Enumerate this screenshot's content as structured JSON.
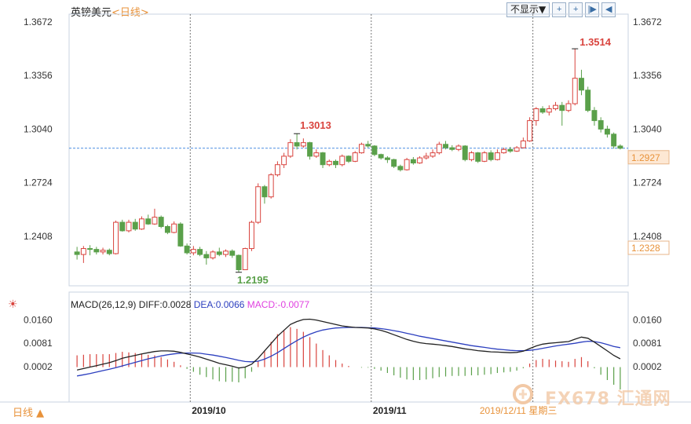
{
  "header": {
    "symbol": "英镑美元",
    "timeframe": "<日线>",
    "dropdown_label": "不显示▼",
    "buttons": [
      "+",
      "+",
      "|▶",
      "◀"
    ]
  },
  "colors": {
    "up": "#d9443e",
    "down": "#5aa04a",
    "diff": "#222222",
    "dea": "#2c3fbf",
    "macd_label": "#e040e0",
    "current_price_bg": "#fde8d4",
    "current_price_text": "#e8923a",
    "crosshair": "#4a8de0"
  },
  "chart_data": {
    "type": "candlestick",
    "price_axis": {
      "ticks": [
        "1.3672",
        "1.3356",
        "1.3040",
        "1.2724",
        "1.2408"
      ],
      "range": [
        1.218,
        1.3672
      ]
    },
    "x_ticks": [
      "2019/10",
      "2019/11"
    ],
    "cursor_date": "2019/12/11 星期三",
    "current_price": "1.2927",
    "second_price_label": "1.2328",
    "annotations": {
      "low": "1.2195",
      "mid_high": "1.3013",
      "high": "1.3514"
    },
    "candles": [
      [
        1.2315,
        1.23,
        1.2345,
        1.227
      ],
      [
        1.23,
        1.2335,
        1.235,
        1.225
      ],
      [
        1.2335,
        1.233,
        1.2355,
        1.2295
      ],
      [
        1.233,
        1.2315,
        1.2345,
        1.23
      ],
      [
        1.2315,
        1.2325,
        1.234,
        1.23
      ],
      [
        1.2325,
        1.2305,
        1.2335,
        1.2295
      ],
      [
        1.2305,
        1.249,
        1.25,
        1.23
      ],
      [
        1.249,
        1.244,
        1.2505,
        1.2435
      ],
      [
        1.244,
        1.249,
        1.2505,
        1.243
      ],
      [
        1.249,
        1.245,
        1.251,
        1.244
      ],
      [
        1.245,
        1.251,
        1.2525,
        1.2445
      ],
      [
        1.251,
        1.248,
        1.2535,
        1.2475
      ],
      [
        1.248,
        1.252,
        1.257,
        1.2475
      ],
      [
        1.252,
        1.2465,
        1.253,
        1.2455
      ],
      [
        1.2465,
        1.243,
        1.2475,
        1.242
      ],
      [
        1.243,
        1.248,
        1.2495,
        1.2425
      ],
      [
        1.248,
        1.235,
        1.249,
        1.2345
      ],
      [
        1.235,
        1.231,
        1.2365,
        1.23
      ],
      [
        1.231,
        1.233,
        1.235,
        1.2295
      ],
      [
        1.233,
        1.23,
        1.2345,
        1.229
      ],
      [
        1.23,
        1.228,
        1.232,
        1.224
      ],
      [
        1.228,
        1.2315,
        1.2325,
        1.227
      ],
      [
        1.2315,
        1.23,
        1.234,
        1.229
      ],
      [
        1.23,
        1.232,
        1.233,
        1.2285
      ],
      [
        1.232,
        1.2295,
        1.233,
        1.228
      ],
      [
        1.2295,
        1.221,
        1.23,
        1.2195
      ],
      [
        1.221,
        1.2335,
        1.234,
        1.221
      ],
      [
        1.2335,
        1.249,
        1.25,
        1.232
      ],
      [
        1.249,
        1.27,
        1.272,
        1.248
      ],
      [
        1.27,
        1.264,
        1.271,
        1.26
      ],
      [
        1.264,
        1.277,
        1.278,
        1.263
      ],
      [
        1.277,
        1.283,
        1.285,
        1.276
      ],
      [
        1.283,
        1.288,
        1.29,
        1.281
      ],
      [
        1.288,
        1.296,
        1.298,
        1.287
      ],
      [
        1.296,
        1.294,
        1.3013,
        1.292
      ],
      [
        1.294,
        1.296,
        1.2985,
        1.293
      ],
      [
        1.296,
        1.288,
        1.2965,
        1.286
      ],
      [
        1.288,
        1.29,
        1.292,
        1.287
      ],
      [
        1.29,
        1.283,
        1.2905,
        1.281
      ],
      [
        1.283,
        1.285,
        1.286,
        1.282
      ],
      [
        1.285,
        1.283,
        1.286,
        1.281
      ],
      [
        1.283,
        1.288,
        1.289,
        1.282
      ],
      [
        1.288,
        1.285,
        1.2885,
        1.284
      ],
      [
        1.285,
        1.29,
        1.291,
        1.2845
      ],
      [
        1.29,
        1.295,
        1.296,
        1.2895
      ],
      [
        1.295,
        1.294,
        1.297,
        1.293
      ],
      [
        1.294,
        1.289,
        1.2945,
        1.288
      ],
      [
        1.289,
        1.287,
        1.2895,
        1.286
      ],
      [
        1.287,
        1.286,
        1.288,
        1.284
      ],
      [
        1.286,
        1.282,
        1.2865,
        1.281
      ],
      [
        1.282,
        1.28,
        1.283,
        1.279
      ],
      [
        1.28,
        1.286,
        1.287,
        1.2795
      ],
      [
        1.286,
        1.284,
        1.2875,
        1.283
      ],
      [
        1.284,
        1.287,
        1.288,
        1.2835
      ],
      [
        1.287,
        1.288,
        1.29,
        1.286
      ],
      [
        1.288,
        1.29,
        1.292,
        1.287
      ],
      [
        1.29,
        1.295,
        1.2965,
        1.289
      ],
      [
        1.295,
        1.293,
        1.297,
        1.292
      ],
      [
        1.293,
        1.292,
        1.2945,
        1.291
      ],
      [
        1.292,
        1.294,
        1.295,
        1.291
      ],
      [
        1.294,
        1.286,
        1.2945,
        1.285
      ],
      [
        1.286,
        1.29,
        1.291,
        1.285
      ],
      [
        1.29,
        1.285,
        1.2905,
        1.284
      ],
      [
        1.285,
        1.29,
        1.291,
        1.2845
      ],
      [
        1.29,
        1.286,
        1.2915,
        1.285
      ],
      [
        1.286,
        1.29,
        1.292,
        1.2855
      ],
      [
        1.29,
        1.292,
        1.293,
        1.2895
      ],
      [
        1.292,
        1.291,
        1.2935,
        1.29
      ],
      [
        1.291,
        1.293,
        1.294,
        1.2905
      ],
      [
        1.293,
        1.297,
        1.299,
        1.2925
      ],
      [
        1.297,
        1.309,
        1.311,
        1.2965
      ],
      [
        1.309,
        1.316,
        1.317,
        1.306
      ],
      [
        1.316,
        1.314,
        1.3175,
        1.313
      ],
      [
        1.314,
        1.316,
        1.318,
        1.312
      ],
      [
        1.316,
        1.318,
        1.32,
        1.315
      ],
      [
        1.318,
        1.315,
        1.32,
        1.306
      ],
      [
        1.315,
        1.319,
        1.321,
        1.314
      ],
      [
        1.319,
        1.334,
        1.3514,
        1.318
      ],
      [
        1.334,
        1.327,
        1.339,
        1.324
      ],
      [
        1.327,
        1.315,
        1.329,
        1.314
      ],
      [
        1.315,
        1.309,
        1.317,
        1.306
      ],
      [
        1.309,
        1.304,
        1.311,
        1.302
      ],
      [
        1.304,
        1.301,
        1.306,
        1.299
      ],
      [
        1.301,
        1.294,
        1.302,
        1.2925
      ],
      [
        1.294,
        1.2927,
        1.295,
        1.292
      ]
    ],
    "macd": {
      "label": "MACD(26,12,9)",
      "diff_label": "DIFF:0.0028",
      "dea_label": "DEA:0.0066",
      "macd_label": "MACD:-0.0077",
      "ticks": [
        "0.0160",
        "0.0081",
        "0.0002"
      ],
      "range": [
        -0.006,
        0.0175
      ],
      "diff": [
        -0.001,
        -0.0005,
        0.0,
        0.0005,
        0.001,
        0.0015,
        0.0022,
        0.003,
        0.0035,
        0.004,
        0.0045,
        0.0049,
        0.0053,
        0.0055,
        0.0055,
        0.0054,
        0.005,
        0.0045,
        0.004,
        0.0034,
        0.0027,
        0.002,
        0.0013,
        0.0008,
        0.0003,
        -0.0003,
        0.0,
        0.001,
        0.003,
        0.0055,
        0.008,
        0.0105,
        0.0125,
        0.0145,
        0.0155,
        0.0162,
        0.0163,
        0.016,
        0.0155,
        0.015,
        0.0145,
        0.014,
        0.0137,
        0.0135,
        0.0134,
        0.0133,
        0.013,
        0.0125,
        0.0118,
        0.011,
        0.0102,
        0.0094,
        0.0088,
        0.0083,
        0.008,
        0.0078,
        0.0076,
        0.0073,
        0.007,
        0.0066,
        0.0062,
        0.0059,
        0.0056,
        0.0054,
        0.0052,
        0.0051,
        0.005,
        0.0049,
        0.005,
        0.0054,
        0.0063,
        0.0072,
        0.0078,
        0.0081,
        0.0083,
        0.0085,
        0.0087,
        0.0095,
        0.0102,
        0.0098,
        0.0085,
        0.007,
        0.0055,
        0.004,
        0.0028
      ],
      "dea": [
        -0.003,
        -0.0026,
        -0.0022,
        -0.0017,
        -0.0012,
        -0.0007,
        -0.0002,
        0.0004,
        0.001,
        0.0016,
        0.0022,
        0.0028,
        0.0033,
        0.0038,
        0.0042,
        0.0045,
        0.0047,
        0.0048,
        0.0048,
        0.0047,
        0.0044,
        0.0041,
        0.0037,
        0.0033,
        0.0028,
        0.0023,
        0.0019,
        0.0018,
        0.002,
        0.0027,
        0.0037,
        0.0049,
        0.0063,
        0.0077,
        0.009,
        0.0102,
        0.0112,
        0.012,
        0.0126,
        0.013,
        0.0133,
        0.0134,
        0.0135,
        0.0135,
        0.0135,
        0.0134,
        0.0133,
        0.0131,
        0.0128,
        0.0124,
        0.012,
        0.0115,
        0.011,
        0.0105,
        0.0101,
        0.0097,
        0.0093,
        0.0089,
        0.0085,
        0.0081,
        0.0077,
        0.0073,
        0.007,
        0.0067,
        0.0064,
        0.0061,
        0.0059,
        0.0057,
        0.0056,
        0.0056,
        0.0057,
        0.006,
        0.0064,
        0.0068,
        0.0072,
        0.0075,
        0.0078,
        0.0081,
        0.0085,
        0.0088,
        0.0087,
        0.0083,
        0.0077,
        0.007,
        0.0066
      ]
    }
  },
  "footer": {
    "period_label": "日线 ▲",
    "watermark": "FX678 汇通网"
  }
}
